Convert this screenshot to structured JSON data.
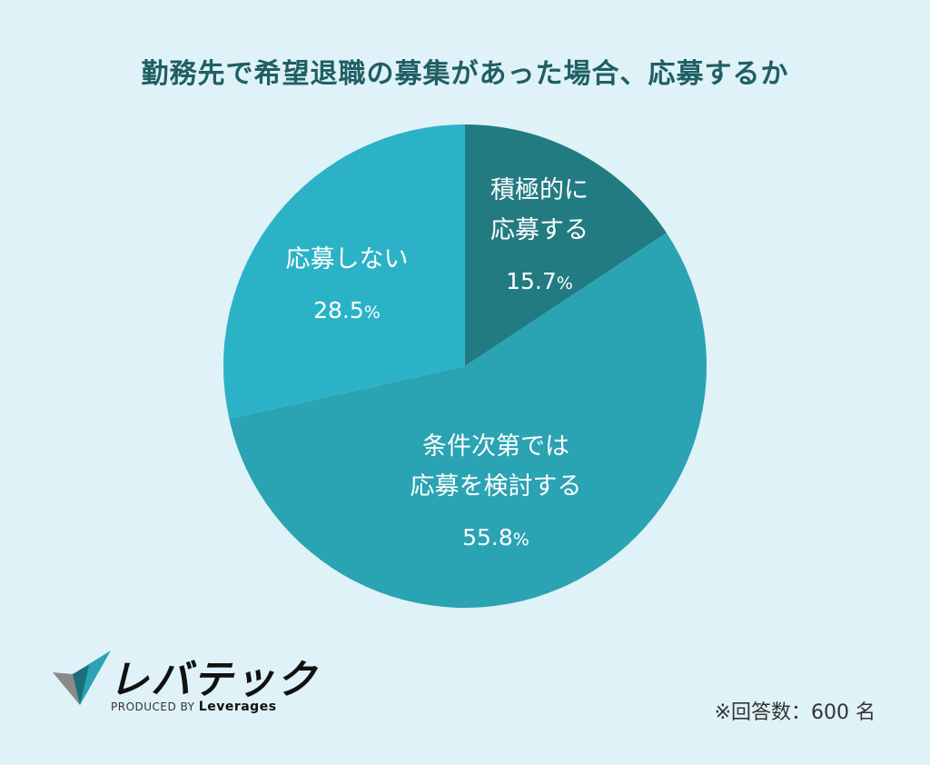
{
  "chart_data": {
    "type": "pie",
    "title": "勤務先で希望退職の募集があった場合、応募するか",
    "slices": [
      {
        "label_lines": [
          "積極的に",
          "応募する"
        ],
        "value": 15.7,
        "value_text": "15.7",
        "unit": "%",
        "color": "#237b82"
      },
      {
        "label_lines": [
          "条件次第では",
          "応募を検討する"
        ],
        "value": 55.8,
        "value_text": "55.8",
        "unit": "%",
        "color": "#2aa3b3"
      },
      {
        "label_lines": [
          "応募しない"
        ],
        "value": 28.5,
        "value_text": "28.5",
        "unit": "%",
        "color": "#2cb2c7"
      }
    ],
    "start_angle_deg": 0,
    "direction": "clockwise"
  },
  "logo": {
    "name": "レバテック",
    "produced_by": "PRODUCED BY",
    "company": "Leverages",
    "icon": "leverages-logo-icon"
  },
  "note": "※回答数：600 名",
  "colors": {
    "background": "#dff2f7",
    "title": "#1f5f63"
  }
}
